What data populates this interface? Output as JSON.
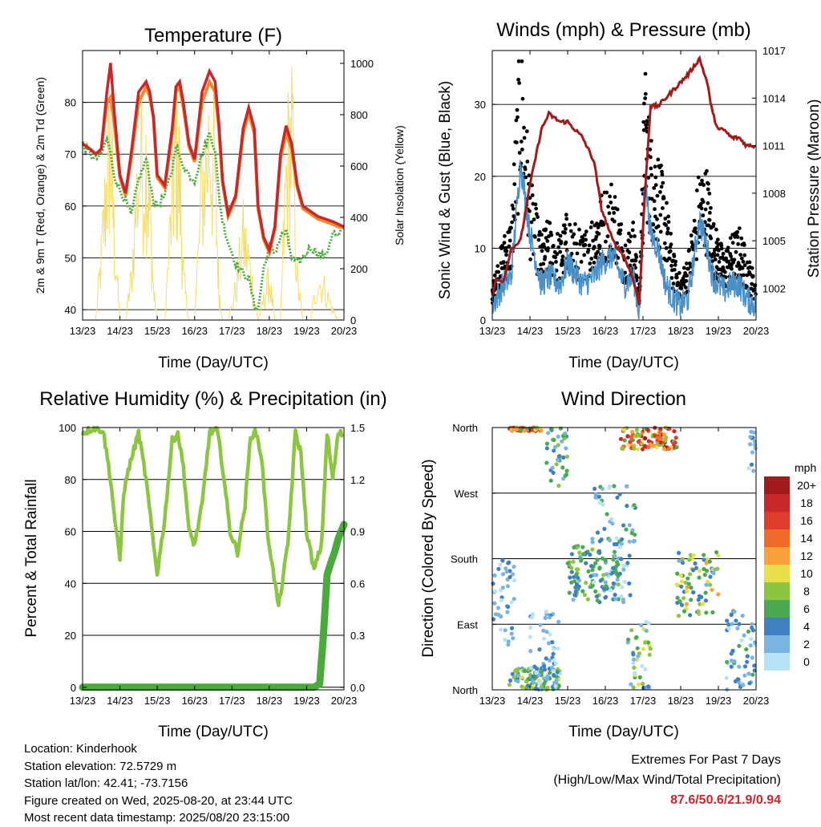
{
  "panels": {
    "temp": {
      "title": "Temperature (F)",
      "ylabel_left": "2m & 9m T (Red, Orange) & 2m Td (Green)",
      "ylabel_right": "Solar Insolation (Yellow)",
      "xlabel": "Time (Day/UTC)"
    },
    "wind": {
      "title": "Winds (mph) & Pressure (mb)",
      "ylabel_left": "Sonic Wind & Gust (Blue, Black)",
      "ylabel_right": "Station Pressure (Maroon)",
      "xlabel": "Time (Day/UTC)"
    },
    "rh": {
      "title": "Relative Humidity (%) & Precipitation (in)",
      "ylabel_left": "Percent & Total Rainfall",
      "xlabel": "Time (Day/UTC)"
    },
    "dir": {
      "title": "Wind Direction",
      "ylabel_left": "Direction (Colored By Speed)",
      "xlabel": "Time (Day/UTC)",
      "legend_title": "mph",
      "legend_labels": [
        "20+",
        "18",
        "16",
        "14",
        "12",
        "10",
        "8",
        "6",
        "4",
        "2",
        "0"
      ],
      "legend_colors": [
        "#a11a1c",
        "#c8272b",
        "#e03b2c",
        "#f06a2a",
        "#f9a23b",
        "#e8e04a",
        "#8cc540",
        "#4aaa52",
        "#3f80c0",
        "#7ab4e0",
        "#b8e2f5"
      ]
    }
  },
  "info": {
    "location": "Location: Kinderhook",
    "elevation": "Station elevation: 72.5729 m",
    "latlon": "Station lat/lon: 42.41; -73.7156",
    "created": "Figure created on Wed, 2025-08-20, at 23:44 UTC",
    "recent": "Most recent data timestamp: 2025/08/20 23:15:00"
  },
  "extremes": {
    "title": "Extremes For Past 7 Days",
    "subtitle": "(High/Low/Max Wind/Total Precipitation)",
    "values": "87.6/50.6/21.9/0.94"
  },
  "chart_data": [
    {
      "type": "line",
      "title": "Temperature (F)",
      "xlabel": "Time (Day/UTC)",
      "ylabel": "2m & 9m T (Red, Orange) & 2m Td (Green)",
      "ylabel_right": "Solar Insolation (Yellow)",
      "x_ticks": [
        "13/23",
        "14/23",
        "15/23",
        "16/23",
        "17/23",
        "18/23",
        "19/23",
        "20/23"
      ],
      "ylim": [
        38,
        90
      ],
      "y_ticks": [
        40,
        50,
        60,
        70,
        80
      ],
      "ylim_right": [
        0,
        1050
      ],
      "y_ticks_right": [
        0,
        200,
        400,
        600,
        800,
        1000
      ],
      "x": [
        0,
        0.2,
        0.35,
        0.5,
        0.65,
        0.75,
        0.85,
        1.0,
        1.15,
        1.3,
        1.5,
        1.7,
        1.8,
        1.9,
        2.0,
        2.2,
        2.4,
        2.5,
        2.6,
        2.7,
        2.85,
        3.0,
        3.2,
        3.4,
        3.55,
        3.65,
        3.75,
        3.9,
        4.1,
        4.3,
        4.45,
        4.6,
        4.7,
        4.85,
        5.0,
        5.15,
        5.3,
        5.45,
        5.6,
        5.75,
        5.9,
        6.1,
        6.3,
        6.5,
        6.7,
        6.85,
        7.0
      ],
      "series": [
        {
          "color": "#c8272b",
          "values": [
            72,
            71,
            70,
            71,
            82,
            87.6,
            78,
            66,
            62.5,
            70,
            82,
            84,
            82,
            77,
            66,
            64,
            75,
            83,
            84,
            80,
            72,
            69,
            82,
            86,
            84,
            76,
            65,
            58.5,
            62,
            75,
            79,
            75,
            60,
            54,
            51.5,
            56,
            70,
            75.5,
            72,
            64,
            60,
            59,
            58,
            57.5,
            57,
            56.5,
            56
          ]
        },
        {
          "color": "#f08a2a",
          "values": [
            72,
            71,
            70,
            71,
            80,
            81,
            76,
            65.5,
            62,
            69,
            80,
            83,
            81,
            77,
            65.5,
            63.5,
            74,
            82,
            83,
            79,
            71.5,
            68.5,
            80,
            84,
            82,
            75,
            64.5,
            58,
            61.5,
            74,
            78,
            74,
            59.5,
            53.5,
            51,
            55.5,
            69,
            74,
            71,
            63.5,
            59.5,
            58.5,
            57.5,
            57,
            56.5,
            56,
            55.8
          ]
        },
        {
          "color": "#4aaa3c",
          "values": [
            72,
            70,
            69,
            70,
            73,
            70,
            66,
            63,
            61,
            58,
            65,
            69,
            65,
            61,
            60,
            62,
            67,
            72,
            69,
            68,
            66,
            65,
            70,
            74,
            71,
            62,
            57,
            53,
            49,
            47,
            46,
            41,
            40,
            48,
            52,
            51,
            54,
            55,
            50,
            49,
            50,
            52,
            51,
            50,
            55,
            54,
            56
          ]
        },
        {
          "color": "#f5dc6a",
          "axis": "right",
          "values": [
            0,
            0,
            0,
            300,
            700,
            900,
            400,
            0,
            0,
            200,
            750,
            800,
            550,
            150,
            0,
            0,
            600,
            850,
            700,
            200,
            0,
            0,
            650,
            900,
            700,
            150,
            0,
            0,
            150,
            400,
            300,
            100,
            0,
            100,
            200,
            0,
            0,
            700,
            950,
            200,
            0,
            0,
            200,
            150,
            50,
            0,
            0
          ]
        }
      ]
    },
    {
      "type": "line",
      "title": "Winds (mph) & Pressure (mb)",
      "xlabel": "Time (Day/UTC)",
      "ylabel": "Sonic Wind & Gust (Blue, Black)",
      "ylabel_right": "Station Pressure (Maroon)",
      "x_ticks": [
        "13/23",
        "14/23",
        "15/23",
        "16/23",
        "17/23",
        "18/23",
        "19/23",
        "20/23"
      ],
      "ylim": [
        0,
        37.5
      ],
      "y_ticks": [
        0,
        10,
        20,
        30
      ],
      "ylim_right": [
        1000,
        1017
      ],
      "y_ticks_right": [
        1002,
        1005,
        1008,
        1011,
        1014,
        1017
      ],
      "x": [
        0,
        0.1,
        0.3,
        0.5,
        0.75,
        1.0,
        1.3,
        1.5,
        1.8,
        2.0,
        2.4,
        2.7,
        2.9,
        3.2,
        3.5,
        3.75,
        3.9,
        4.05,
        4.2,
        4.4,
        4.6,
        4.8,
        5.0,
        5.2,
        5.5,
        5.7,
        5.85,
        6.0,
        6.15,
        6.35,
        6.55,
        6.75,
        7.0
      ],
      "series": [
        {
          "color": "#a11a1c",
          "axis": "right",
          "values": [
            1001.5,
            1002.5,
            1002.5,
            1004.5,
            1005,
            1008.5,
            1012,
            1013,
            1012.5,
            1012.5,
            1011.5,
            1010,
            1007,
            1005,
            1004,
            1002.5,
            1001,
            1008,
            1013.5,
            1013.5,
            1014,
            1014.5,
            1015,
            1015.5,
            1016.5,
            1015,
            1013,
            1012,
            1012,
            1011.5,
            1011.5,
            1011,
            1011
          ]
        },
        {
          "color": "#4a90c8",
          "values": [
            2,
            3,
            5,
            6,
            21.9,
            12,
            5,
            6,
            5,
            8,
            5,
            6,
            8,
            9,
            5,
            6,
            1,
            20,
            12,
            10,
            5,
            3,
            2,
            3,
            14,
            10,
            6,
            5,
            4,
            5,
            5,
            3,
            2
          ]
        },
        {
          "color": "#000000",
          "values": [
            4,
            6,
            10,
            12,
            35,
            17,
            10,
            12,
            10,
            13,
            10,
            13,
            15,
            17,
            10,
            12,
            3,
            30,
            22,
            20,
            15,
            8,
            5,
            8,
            18,
            18,
            12,
            10,
            8,
            10,
            11,
            8,
            5
          ]
        }
      ]
    },
    {
      "type": "line",
      "title": "Relative Humidity (%) & Precipitation (in)",
      "xlabel": "Time (Day/UTC)",
      "ylabel": "Percent & Total Rainfall",
      "x_ticks": [
        "13/23",
        "14/23",
        "15/23",
        "16/23",
        "17/23",
        "18/23",
        "19/23",
        "20/23"
      ],
      "ylim": [
        -1,
        100
      ],
      "y_ticks": [
        0,
        20,
        40,
        60,
        80,
        100
      ],
      "ylim_right": [
        -0.015,
        1.5
      ],
      "y_ticks_right": [
        0.0,
        0.3,
        0.6,
        0.9,
        1.2,
        1.5
      ],
      "x": [
        0,
        0.3,
        0.55,
        0.75,
        0.9,
        1.0,
        1.1,
        1.25,
        1.5,
        1.7,
        1.9,
        2.0,
        2.2,
        2.4,
        2.55,
        2.7,
        2.85,
        3.0,
        3.2,
        3.4,
        3.6,
        3.75,
        3.95,
        4.15,
        4.35,
        4.5,
        4.65,
        4.8,
        4.95,
        5.1,
        5.25,
        5.5,
        5.7,
        5.85,
        6.0,
        6.2,
        6.4,
        6.55,
        6.7,
        6.85,
        7.0
      ],
      "series": [
        {
          "color": "#8cc540",
          "values": [
            98,
            100,
            99,
            80,
            60,
            49,
            75,
            85,
            98,
            80,
            55,
            44,
            65,
            95,
            98,
            85,
            60,
            55,
            70,
            98,
            99,
            85,
            60,
            52,
            70,
            97,
            98,
            88,
            60,
            45,
            31,
            55,
            98,
            90,
            60,
            45,
            55,
            98,
            80,
            98,
            97
          ]
        },
        {
          "color": "#4aaa3c",
          "axis": "right",
          "x": [
            0,
            6.2,
            6.35,
            6.45,
            6.55,
            6.65,
            6.75,
            6.85,
            7.0
          ],
          "values": [
            0,
            0,
            0.02,
            0.3,
            0.65,
            0.72,
            0.78,
            0.86,
            0.94
          ]
        }
      ]
    },
    {
      "type": "scatter",
      "title": "Wind Direction",
      "xlabel": "Time (Day/UTC)",
      "ylabel": "Direction (Colored By Speed)",
      "x_ticks": [
        "13/23",
        "14/23",
        "15/23",
        "16/23",
        "17/23",
        "18/23",
        "19/23",
        "20/23"
      ],
      "y_ticks": [
        "North",
        "East",
        "South",
        "West",
        "North"
      ],
      "ylim": [
        0,
        360
      ],
      "colorbar": {
        "title": "mph",
        "labels": [
          "20+",
          "18",
          "16",
          "14",
          "12",
          "10",
          "8",
          "6",
          "4",
          "2",
          "0"
        ]
      },
      "clusters": [
        {
          "x": [
            0.45,
            1.3
          ],
          "dir": [
            355,
            360
          ],
          "speed": [
            4,
            18
          ]
        },
        {
          "x": [
            1.4,
            2.0
          ],
          "dir": [
            280,
            360
          ],
          "speed": [
            2,
            8
          ]
        },
        {
          "x": [
            0.0,
            0.6
          ],
          "dir": [
            60,
            180
          ],
          "speed": [
            0,
            4
          ]
        },
        {
          "x": [
            0.45,
            1.8
          ],
          "dir": [
            0,
            30
          ],
          "speed": [
            2,
            10
          ]
        },
        {
          "x": [
            1.0,
            1.8
          ],
          "dir": [
            0,
            110
          ],
          "speed": [
            0,
            4
          ]
        },
        {
          "x": [
            2.0,
            3.4
          ],
          "dir": [
            120,
            200
          ],
          "speed": [
            2,
            8
          ]
        },
        {
          "x": [
            2.6,
            3.8
          ],
          "dir": [
            120,
            280
          ],
          "speed": [
            0,
            6
          ]
        },
        {
          "x": [
            3.4,
            4.9
          ],
          "dir": [
            330,
            360
          ],
          "speed": [
            6,
            20
          ]
        },
        {
          "x": [
            3.6,
            4.2
          ],
          "dir": [
            0,
            100
          ],
          "speed": [
            0,
            10
          ]
        },
        {
          "x": [
            4.9,
            6.0
          ],
          "dir": [
            100,
            190
          ],
          "speed": [
            2,
            12
          ]
        },
        {
          "x": [
            6.2,
            7.0
          ],
          "dir": [
            0,
            110
          ],
          "speed": [
            0,
            6
          ]
        },
        {
          "x": [
            6.8,
            7.0
          ],
          "dir": [
            300,
            360
          ],
          "speed": [
            0,
            4
          ]
        }
      ]
    }
  ]
}
